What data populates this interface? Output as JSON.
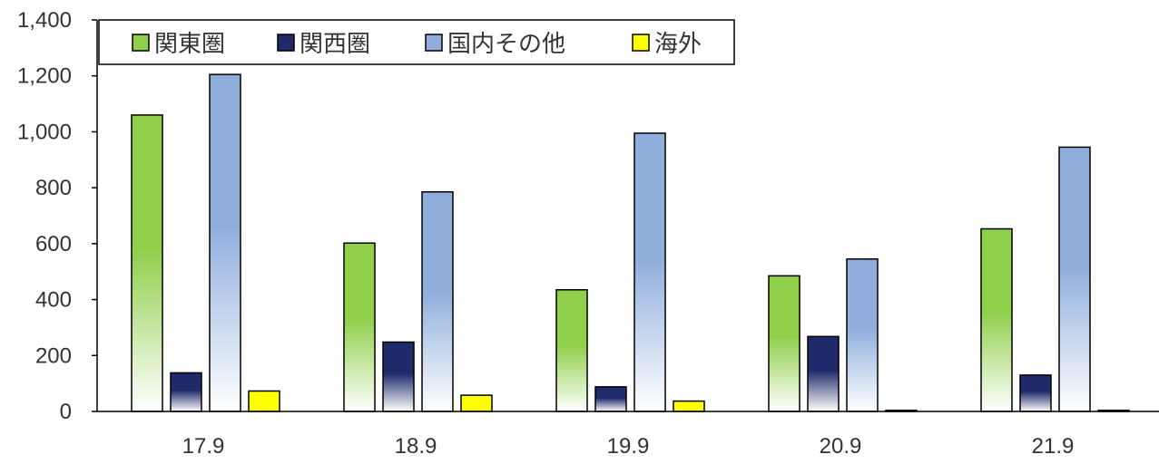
{
  "chart_data": {
    "type": "bar",
    "title": "",
    "xlabel": "",
    "ylabel": "",
    "categories": [
      "17.9",
      "18.9",
      "19.9",
      "20.9",
      "21.9"
    ],
    "series": [
      {
        "name": "関東圏",
        "values": [
          1060,
          602,
          435,
          485,
          653
        ],
        "color": "#8fcf4a"
      },
      {
        "name": "関西圏",
        "values": [
          138,
          248,
          88,
          268,
          130
        ],
        "color": "#1f2a6b"
      },
      {
        "name": "国内その他",
        "values": [
          1205,
          785,
          995,
          545,
          945
        ],
        "color": "#8faedc"
      },
      {
        "name": "海外",
        "values": [
          73,
          58,
          37,
          4,
          4
        ],
        "color": "#ffff00"
      }
    ],
    "ylim": [
      0,
      1400
    ],
    "yticks": [
      "0",
      "200",
      "400",
      "600",
      "800",
      "1,000",
      "1,200",
      "1,400"
    ],
    "grid": false,
    "legend_position": "top-left"
  }
}
